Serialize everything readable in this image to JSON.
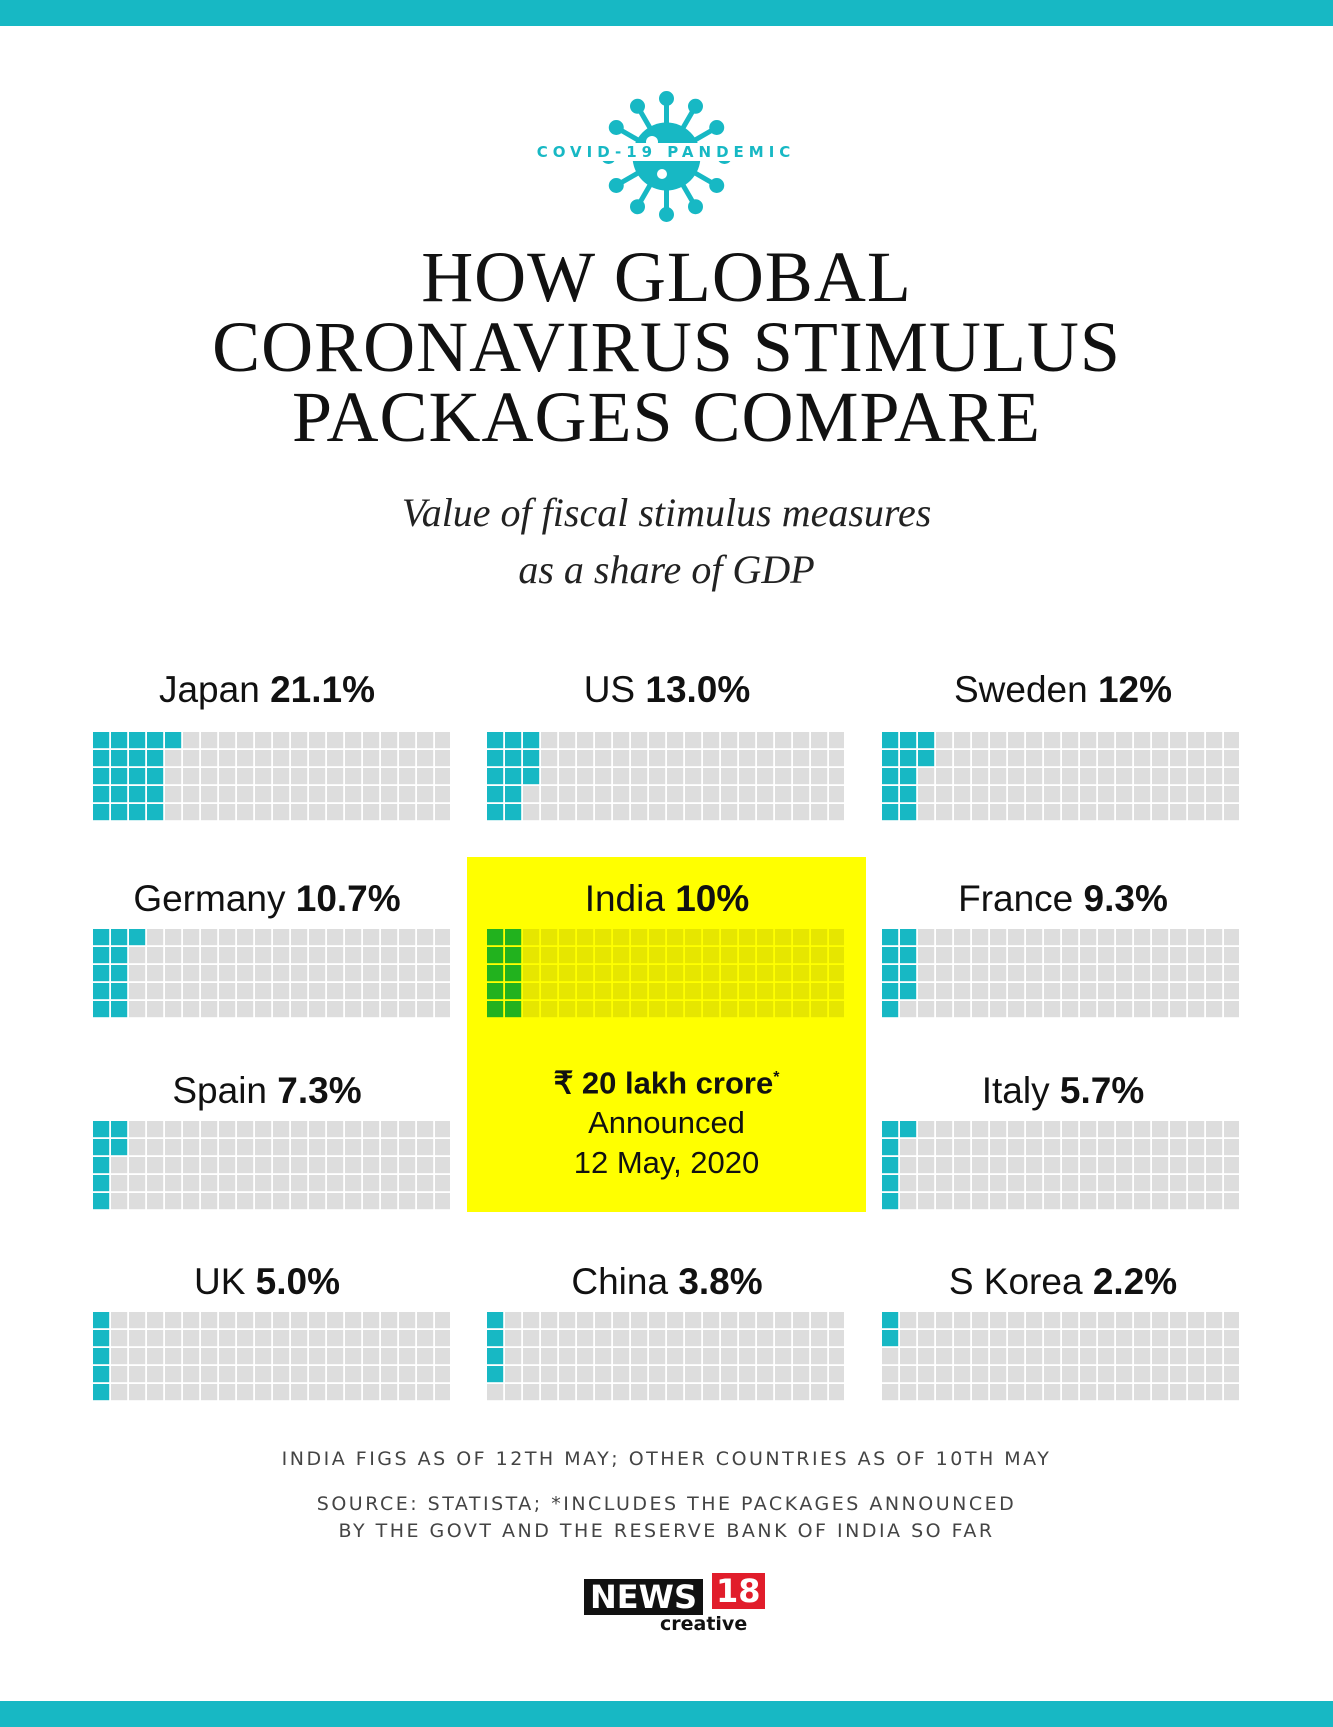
{
  "header": {
    "badge": "COVID-19 PANDEMIC",
    "title_lines": [
      "HOW GLOBAL",
      "CORONAVIRUS STIMULUS",
      "PACKAGES COMPARE"
    ],
    "subtitle_lines": [
      "Value of fiscal stimulus measures",
      "as a share of GDP"
    ]
  },
  "colors": {
    "accent": "#17b8c4",
    "empty_cell": "#dddddd",
    "india_fill": "#22b21e",
    "india_empty": "#e6e600",
    "highlight_bg": "#ffff00"
  },
  "chart_data": {
    "type": "waffle",
    "unit": "% of GDP",
    "grid": {
      "rows": 5,
      "columns": 20,
      "cells": 100
    },
    "series": [
      {
        "name": "Japan",
        "value": 21.1,
        "label": "21.1%"
      },
      {
        "name": "US",
        "value": 13.0,
        "label": "13.0%"
      },
      {
        "name": "Sweden",
        "value": 12,
        "label": "12%"
      },
      {
        "name": "Germany",
        "value": 10.7,
        "label": "10.7%"
      },
      {
        "name": "India",
        "value": 10,
        "label": "10%",
        "highlight": true
      },
      {
        "name": "France",
        "value": 9.3,
        "label": "9.3%"
      },
      {
        "name": "Spain",
        "value": 7.3,
        "label": "7.3%"
      },
      {
        "name": "Italy",
        "value": 5.7,
        "label": "5.7%"
      },
      {
        "name": "UK",
        "value": 5.0,
        "label": "5.0%"
      },
      {
        "name": "China",
        "value": 3.8,
        "label": "3.8%"
      },
      {
        "name": "S Korea",
        "value": 2.2,
        "label": "2.2%"
      }
    ]
  },
  "india_note": {
    "amount": "₹ 20 lakh crore",
    "asterisk": "*",
    "line1": "Announced",
    "line2": "12 May, 2020"
  },
  "footnotes": {
    "dates": "INDIA FIGS AS OF 12TH MAY; OTHER COUNTRIES AS OF 10TH MAY",
    "source_lines": [
      "SOURCE: STATISTA; *INCLUDES THE PACKAGES ANNOUNCED",
      "BY THE GOVT AND THE RESERVE BANK OF INDIA SO FAR"
    ]
  },
  "logo": {
    "news": "NEWS",
    "number": "18",
    "sub": "creative"
  }
}
